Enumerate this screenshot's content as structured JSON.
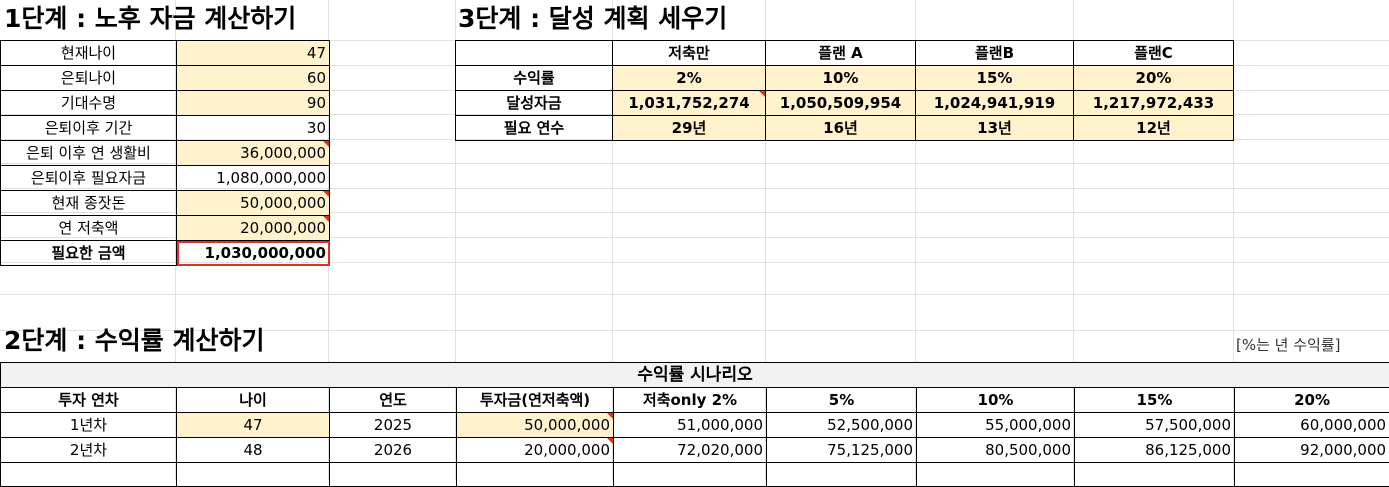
{
  "step1": {
    "heading": "1단계 : 노후 자금 계산하기",
    "rows": [
      {
        "label": "현재나이",
        "value": "47"
      },
      {
        "label": "은퇴나이",
        "value": "60"
      },
      {
        "label": "기대수명",
        "value": "90"
      },
      {
        "label": "은퇴이후 기간",
        "value": "30"
      },
      {
        "label": "은퇴 이후 연 생활비",
        "value": "36,000,000"
      },
      {
        "label": "은퇴이후 필요자금",
        "value": "1,080,000,000"
      },
      {
        "label": "현재 종잣돈",
        "value": "50,000,000"
      },
      {
        "label": "연 저축액",
        "value": "20,000,000"
      },
      {
        "label": "필요한 금액",
        "value": "1,030,000,000"
      }
    ]
  },
  "step3": {
    "heading": "3단계 : 달성 계획 세우기",
    "columns": [
      "저축만",
      "플랜 A",
      "플랜B",
      "플랜C"
    ],
    "rows": [
      {
        "label": "수익률",
        "values": [
          "2%",
          "10%",
          "15%",
          "20%"
        ]
      },
      {
        "label": "달성자금",
        "values": [
          "1,031,752,274",
          "1,050,509,954",
          "1,024,941,919",
          "1,217,972,433"
        ]
      },
      {
        "label": "필요 연수",
        "values": [
          "29년",
          "16년",
          "13년",
          "12년"
        ]
      }
    ]
  },
  "step2": {
    "heading": "2단계 : 수익률 계산하기",
    "note": "[%는 년 수익률]",
    "scenario_title": "수익률 시나리오",
    "columns": [
      "투자 연차",
      "나이",
      "연도",
      "투자금(연저축액)",
      "저축only 2%",
      "5%",
      "10%",
      "15%",
      "20%"
    ],
    "rows": [
      [
        "1년차",
        "47",
        "2025",
        "50,000,000",
        "51,000,000",
        "52,500,000",
        "55,000,000",
        "57,500,000",
        "60,000,000"
      ],
      [
        "2년차",
        "48",
        "2026",
        "20,000,000",
        "72,020,000",
        "75,125,000",
        "80,500,000",
        "86,125,000",
        "92,000,000"
      ]
    ]
  },
  "colors": {
    "input_fill": "#fff2cc",
    "flag_red": "#e0301e",
    "header_gray": "#f2f2f2"
  }
}
